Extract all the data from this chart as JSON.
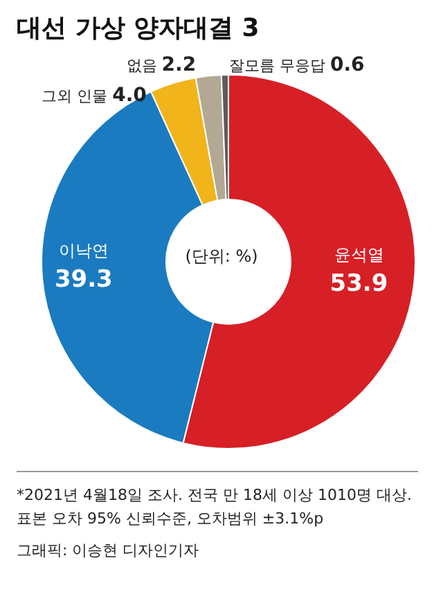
{
  "chart_data": {
    "type": "donut",
    "title": "대선 가상 양자대결 3",
    "categories": [
      "윤석열",
      "이낙연",
      "그외 인물",
      "없음",
      "잘모름 무응답"
    ],
    "values": [
      53.9,
      39.3,
      4.0,
      2.2,
      0.6
    ],
    "value_labels": [
      "53.9",
      "39.3",
      "4.0",
      "2.2",
      "0.6"
    ],
    "colors": [
      "#d71f26",
      "#1b7bc0",
      "#f1b41b",
      "#b2a893",
      "#5b5b58"
    ],
    "annotations": [
      "(단위: %)",
      "*2021년 4월18일 조사. 전국 만 18세 이상 1010명 대상. 표본 오차 95% 신뢰수준, 오차범위 ±3.1%p",
      "그래픽: 이승현 디자인기자"
    ]
  }
}
